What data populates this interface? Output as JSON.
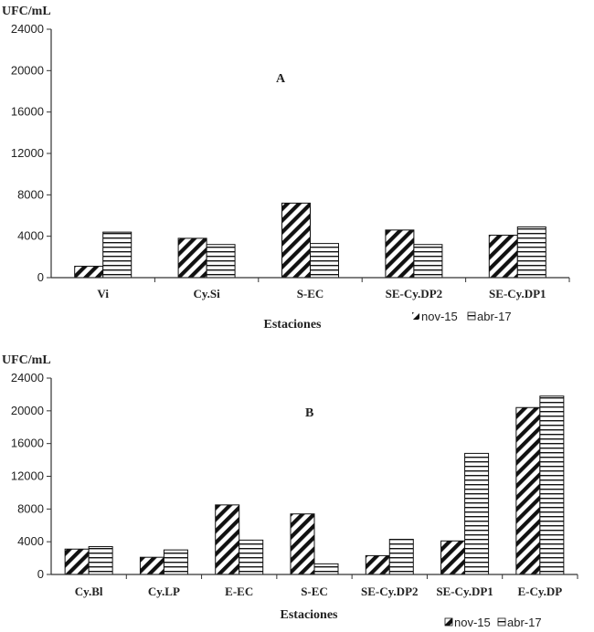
{
  "chart_data": [
    {
      "type": "bar",
      "panel_label": "A",
      "ylabel": "UFC/mL",
      "xlabel": "Estaciones",
      "categories": [
        "Vi",
        "Cy.Si",
        "S-EC",
        "SE-Cy.DP2",
        "SE-Cy.DP1"
      ],
      "series": [
        {
          "name": "nov-15",
          "values": [
            1100,
            3800,
            7200,
            4600,
            4100
          ]
        },
        {
          "name": "abr-17",
          "values": [
            4400,
            3200,
            3300,
            3200,
            4900
          ]
        }
      ],
      "ylim": [
        0,
        24000
      ],
      "yticks": [
        "0",
        "4000",
        "8000",
        "12000",
        "16000",
        "20000",
        "24000"
      ],
      "legend": "bottom-right",
      "grid": false
    },
    {
      "type": "bar",
      "panel_label": "B",
      "ylabel": "UFC/mL",
      "xlabel": "Estaciones",
      "categories": [
        "Cy.Bl",
        "Cy.LP",
        "E-EC",
        "S-EC",
        "SE-Cy.DP2",
        "SE-Cy.DP1",
        "E-Cy.DP"
      ],
      "series": [
        {
          "name": "nov-15",
          "values": [
            3100,
            2100,
            8500,
            7400,
            2300,
            4100,
            20400
          ]
        },
        {
          "name": "abr-17",
          "values": [
            3400,
            3000,
            4200,
            1300,
            4300,
            14800,
            21800
          ]
        }
      ],
      "ylim": [
        0,
        24000
      ],
      "yticks": [
        "0",
        "4000",
        "8000",
        "12000",
        "16000",
        "20000",
        "24000"
      ],
      "legend": "bottom-right",
      "grid": false
    }
  ]
}
